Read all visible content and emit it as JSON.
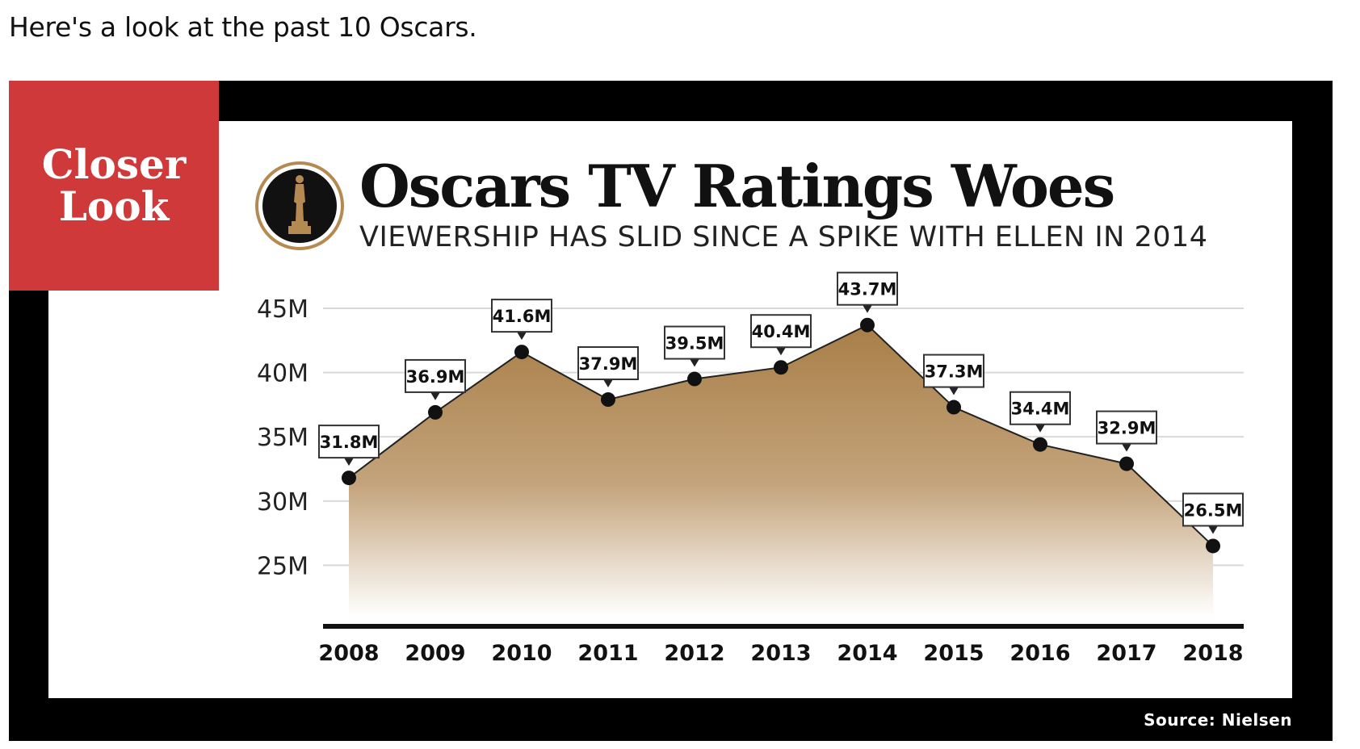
{
  "intro_text": "Here's a look at the past 10 Oscars.",
  "badge": {
    "line1": "Closer",
    "line2": "Look"
  },
  "source": "Source: Nielsen",
  "colors": {
    "badge": "#d0393a",
    "frame": "#000000",
    "area_top": "#a87e47",
    "area_bottom": "#ffffff",
    "logo_ring": "#b58a52"
  },
  "chart_data": {
    "type": "area",
    "title": "Oscars TV Ratings Woes",
    "subtitle": "VIEWERSHIP HAS SLID SINCE A SPIKE WITH ELLEN IN 2014",
    "categories": [
      "2008",
      "2009",
      "2010",
      "2011",
      "2012",
      "2013",
      "2014",
      "2015",
      "2016",
      "2017",
      "2018"
    ],
    "values": [
      31.8,
      36.9,
      41.6,
      37.9,
      39.5,
      40.4,
      43.7,
      37.3,
      34.4,
      32.9,
      26.5
    ],
    "data_labels": [
      "31.8M",
      "36.9M",
      "41.6M",
      "37.9M",
      "39.5M",
      "40.4M",
      "43.7M",
      "37.3M",
      "34.4M",
      "32.9M",
      "26.5M"
    ],
    "yticks": [
      25,
      30,
      35,
      40,
      45
    ],
    "ytick_labels": [
      "25M",
      "30M",
      "35M",
      "40M",
      "45M"
    ],
    "ylim": [
      21,
      45
    ],
    "unit": "M",
    "grid": true,
    "xlabel": "",
    "ylabel": ""
  }
}
